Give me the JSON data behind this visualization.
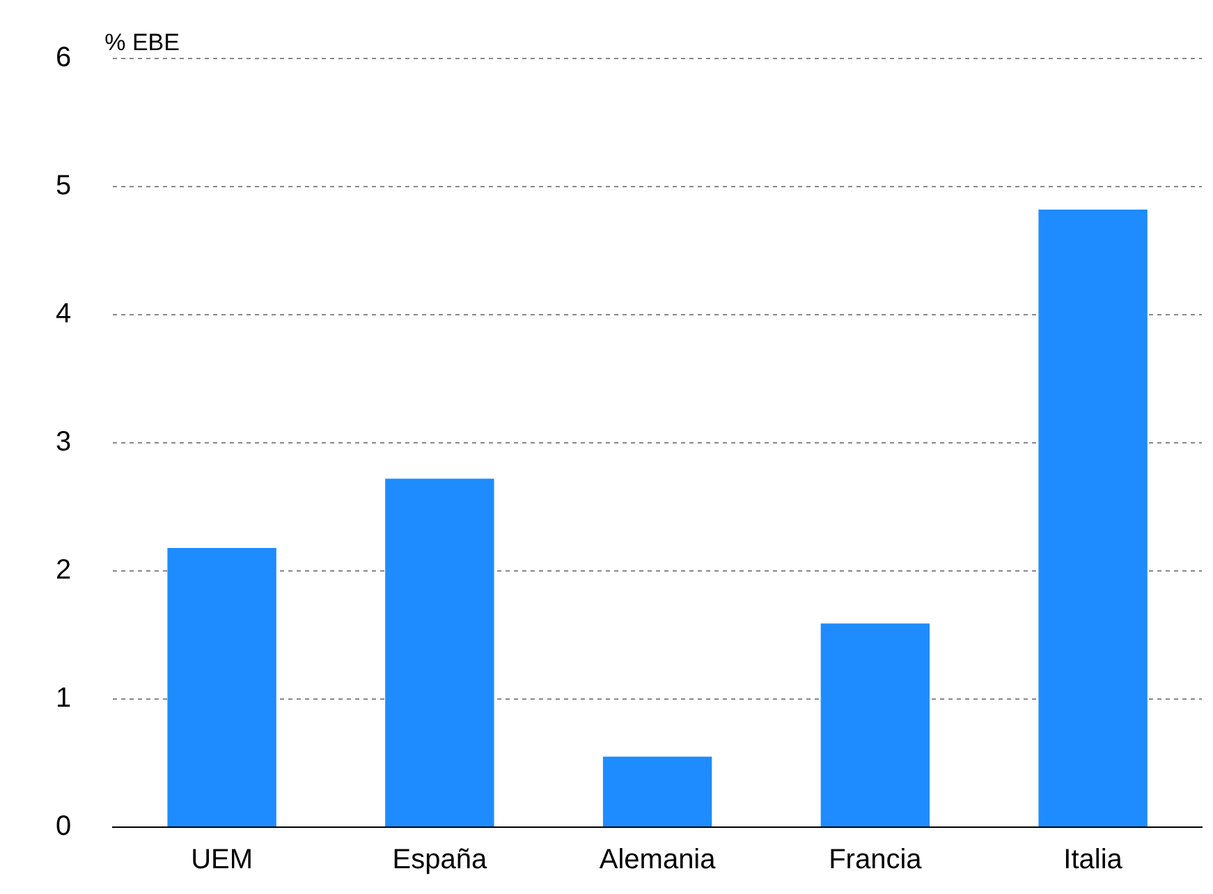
{
  "chart_data": {
    "type": "bar",
    "ylabel": "% EBE",
    "categories": [
      "UEM",
      "España",
      "Alemania",
      "Francia",
      "Italia"
    ],
    "values": [
      2.18,
      2.72,
      0.55,
      1.59,
      4.82
    ],
    "color": "#1e8cff",
    "ylim": [
      0,
      6
    ],
    "yticks": [
      0,
      1,
      2,
      3,
      4,
      5,
      6
    ],
    "grid": "y",
    "legend": false
  }
}
